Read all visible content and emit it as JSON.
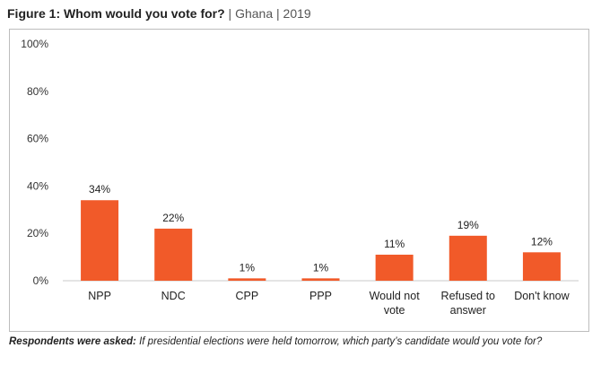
{
  "header": {
    "figure_title": "Figure 1: Whom would you vote for?",
    "sep1": "|",
    "country": "Ghana",
    "sep2": "|",
    "year": "2019"
  },
  "chart_data": {
    "type": "bar",
    "title": "Figure 1: Whom would you vote for?",
    "categories": [
      [
        "NPP"
      ],
      [
        "NDC"
      ],
      [
        "CPP"
      ],
      [
        "PPP"
      ],
      [
        "Would not",
        "vote"
      ],
      [
        "Refused to",
        "answer"
      ],
      [
        "Don't know"
      ]
    ],
    "values": [
      34,
      22,
      1,
      1,
      11,
      19,
      12
    ],
    "data_labels": [
      "34%",
      "22%",
      "1%",
      "1%",
      "11%",
      "19%",
      "12%"
    ],
    "yticks": [
      "0%",
      "20%",
      "40%",
      "60%",
      "80%",
      "100%"
    ],
    "ylim": [
      0,
      100
    ],
    "bar_color": "#f15a29",
    "grid": false,
    "xlabel": "",
    "ylabel": ""
  },
  "footnote": {
    "lead": "Respondents were asked:",
    "text": "If presidential elections were held tomorrow, which party’s candidate would you vote for?"
  }
}
